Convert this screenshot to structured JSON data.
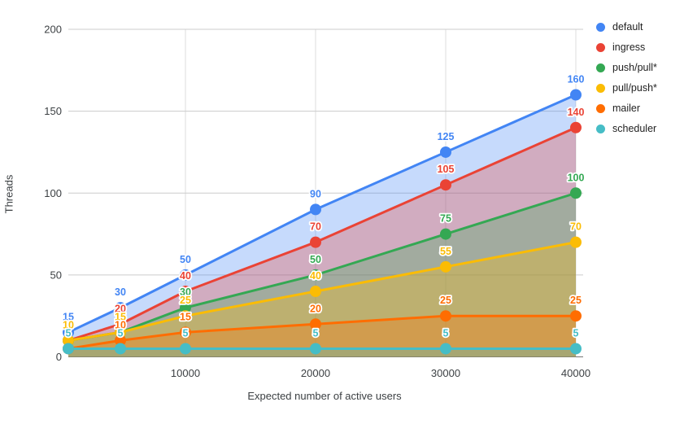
{
  "chart_data": {
    "type": "area",
    "title": "",
    "xlabel": "Expected number of active users",
    "ylabel": "Threads",
    "x": [
      1000,
      5000,
      10000,
      20000,
      30000,
      40000
    ],
    "x_ticks": [
      10000,
      20000,
      30000,
      40000
    ],
    "x_tick_labels": [
      "10000",
      "20000",
      "30000",
      "40000"
    ],
    "y_ticks": [
      0,
      50,
      100,
      150,
      200
    ],
    "y_tick_labels": [
      "0",
      "50",
      "100",
      "150",
      "200"
    ],
    "xlim": [
      1000,
      40000
    ],
    "ylim": [
      0,
      200
    ],
    "grid": true,
    "legend_position": "right",
    "area_opacity": 0.3,
    "gridline_color": "#cccccc",
    "baseline_color": "#757575",
    "background_color": "#ffffff",
    "series": [
      {
        "name": "default",
        "color": "#4285F4",
        "values": [
          15,
          30,
          50,
          90,
          125,
          160
        ]
      },
      {
        "name": "ingress",
        "color": "#EA4335",
        "values": [
          10,
          20,
          40,
          70,
          105,
          140
        ]
      },
      {
        "name": "push/pull*",
        "color": "#34A853",
        "values": [
          10,
          15,
          30,
          50,
          75,
          100
        ]
      },
      {
        "name": "pull/push*",
        "color": "#FBBC04",
        "values": [
          10,
          15,
          25,
          40,
          55,
          70
        ]
      },
      {
        "name": "mailer",
        "color": "#FF6D01",
        "values": [
          5,
          10,
          15,
          20,
          25,
          25
        ]
      },
      {
        "name": "scheduler",
        "color": "#46BDC6",
        "values": [
          5,
          5,
          5,
          5,
          5,
          5
        ]
      }
    ]
  }
}
